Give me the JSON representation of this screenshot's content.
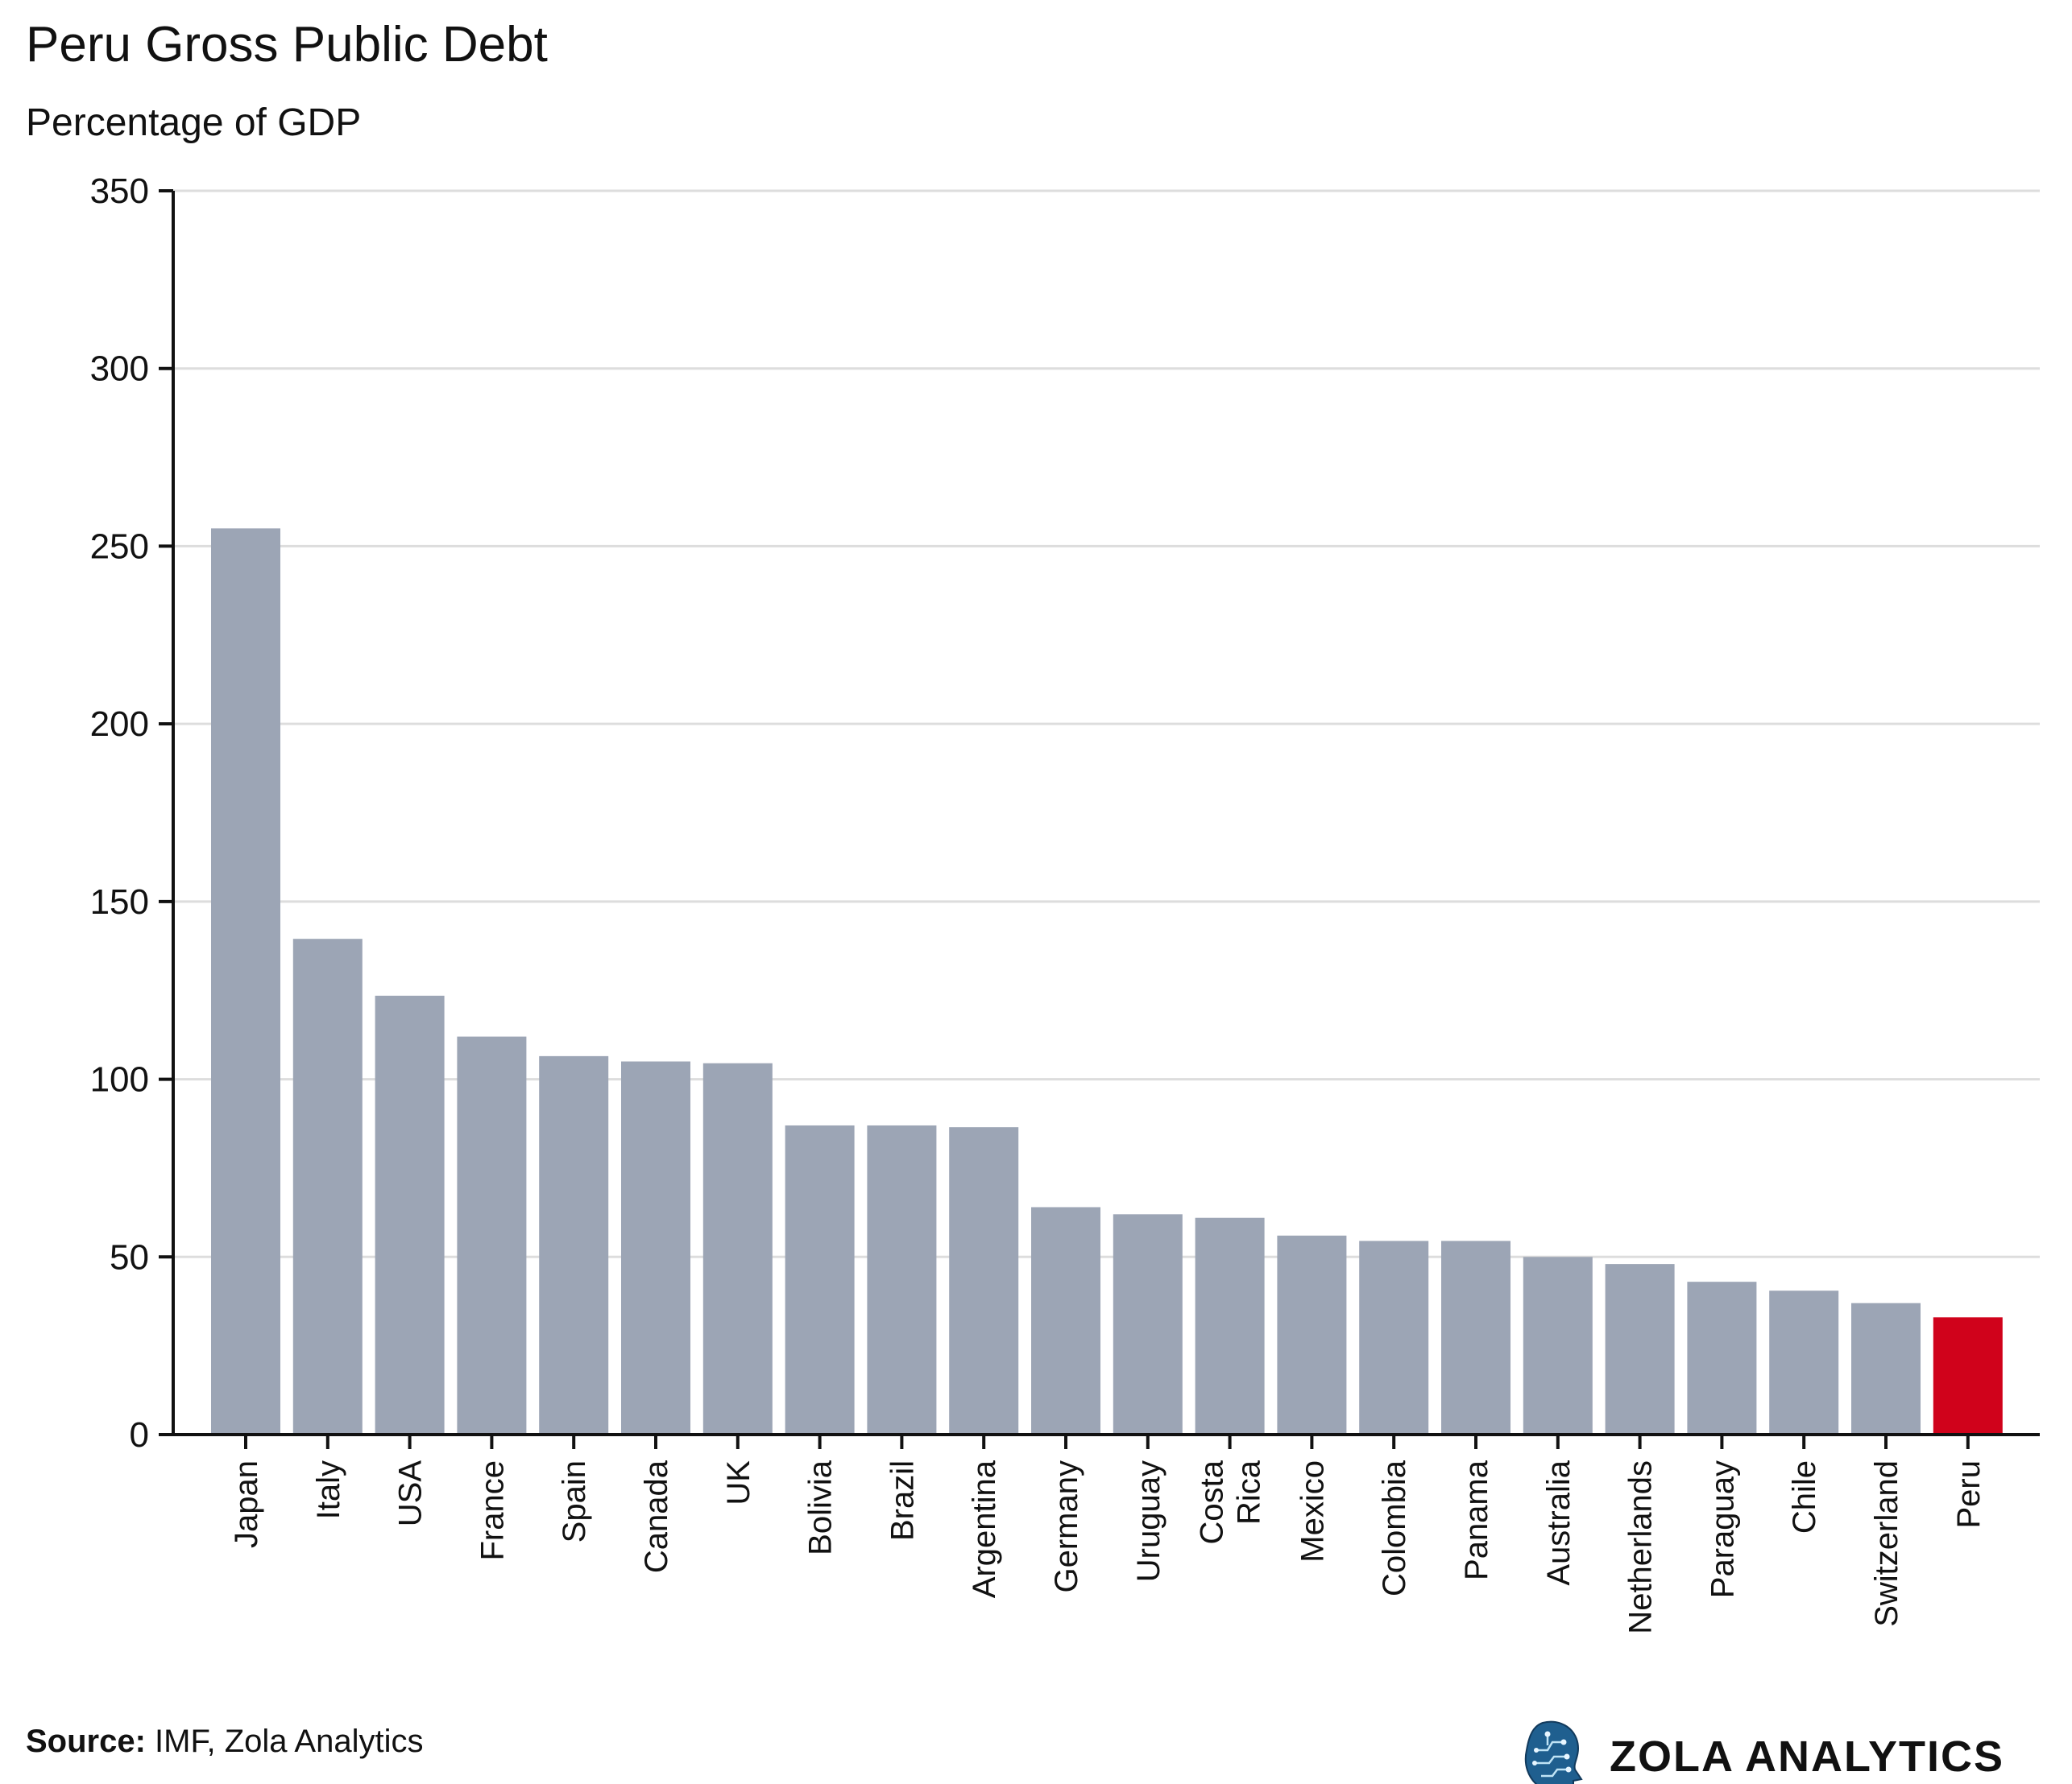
{
  "chart_data": {
    "type": "bar",
    "title": "Peru Gross Public Debt",
    "subtitle": "Percentage of GDP",
    "xlabel": "",
    "ylabel": "",
    "ylim": [
      0,
      350
    ],
    "yticks": [
      0,
      50,
      100,
      150,
      200,
      250,
      300,
      350
    ],
    "grid": true,
    "categories": [
      "Japan",
      "Italy",
      "USA",
      "France",
      "Spain",
      "Canada",
      "UK",
      "Bolivia",
      "Brazil",
      "Argentina",
      "Germany",
      "Uruguay",
      "Costa Rica",
      "Mexico",
      "Colombia",
      "Panama",
      "Australia",
      "Netherlands",
      "Paraguay",
      "Chile",
      "Switzerland",
      "Peru"
    ],
    "category_lines": [
      [
        "Japan"
      ],
      [
        "Italy"
      ],
      [
        "USA"
      ],
      [
        "France"
      ],
      [
        "Spain"
      ],
      [
        "Canada"
      ],
      [
        "UK"
      ],
      [
        "Bolivia"
      ],
      [
        "Brazil"
      ],
      [
        "Argentina"
      ],
      [
        "Germany"
      ],
      [
        "Uruguay"
      ],
      [
        "Costa",
        "Rica"
      ],
      [
        "Mexico"
      ],
      [
        "Colombia"
      ],
      [
        "Panama"
      ],
      [
        "Australia"
      ],
      [
        "Netherlands"
      ],
      [
        "Paraguay"
      ],
      [
        "Chile"
      ],
      [
        "Switzerland"
      ],
      [
        "Peru"
      ]
    ],
    "values": [
      255,
      139.5,
      123.5,
      112,
      106.5,
      105,
      104.5,
      87,
      87,
      86.5,
      64,
      62,
      61,
      56,
      54.5,
      54.5,
      50,
      48,
      43,
      40.5,
      37,
      33
    ],
    "highlight": "Peru",
    "colors": {
      "default": "#9ca5b5",
      "highlight": "#d0021b",
      "grid": "#dddddd",
      "axis": "#111111"
    }
  },
  "footer": {
    "source_label": "Source:",
    "source_text": " IMF, Zola Analytics",
    "brand": "ZOLA ANALYTICS",
    "brand_icon": "head-circuit-icon"
  }
}
